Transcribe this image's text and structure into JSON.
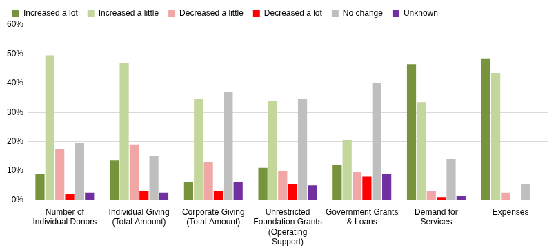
{
  "chart_data": {
    "type": "bar",
    "categories": [
      "Number of Individual Donors",
      "Individual Giving (Total Amount)",
      "Corporate Giving (Total Amount)",
      "Unrestricted Foundation Grants (Operating Support)",
      "Government Grants & Loans",
      "Demand for Services",
      "Expenses"
    ],
    "series": [
      {
        "name": "Increased a lot",
        "color": "#77933C",
        "values": [
          9,
          13.5,
          6,
          11,
          12,
          46.5,
          48.5
        ]
      },
      {
        "name": "Increased a little",
        "color": "#C3D69B",
        "values": [
          49.5,
          47,
          34.5,
          34,
          20.5,
          33.5,
          43.5
        ]
      },
      {
        "name": "Decreased a little",
        "color": "#F2A7A7",
        "values": [
          17.5,
          19,
          13,
          10,
          9.5,
          3,
          2.5
        ]
      },
      {
        "name": "Decreased a lot",
        "color": "#FF0000",
        "values": [
          2,
          3,
          3,
          5.5,
          8,
          1,
          0
        ]
      },
      {
        "name": "No change",
        "color": "#BFBFBF",
        "values": [
          19.5,
          15,
          37,
          34.5,
          40,
          14,
          5.5
        ]
      },
      {
        "name": "Unknown",
        "color": "#7030A0",
        "values": [
          2.5,
          2.5,
          6,
          5,
          9,
          1.5,
          0
        ]
      }
    ],
    "ylim": [
      0,
      60
    ],
    "yticks": [
      {
        "value": 0,
        "label": "0%"
      },
      {
        "value": 10,
        "label": "10%"
      },
      {
        "value": 20,
        "label": "20%"
      },
      {
        "value": 30,
        "label": "30%"
      },
      {
        "value": 40,
        "label": "40%"
      },
      {
        "value": 50,
        "label": "50%"
      },
      {
        "value": 60,
        "label": "60%"
      }
    ],
    "grid": true,
    "legend": "top"
  }
}
